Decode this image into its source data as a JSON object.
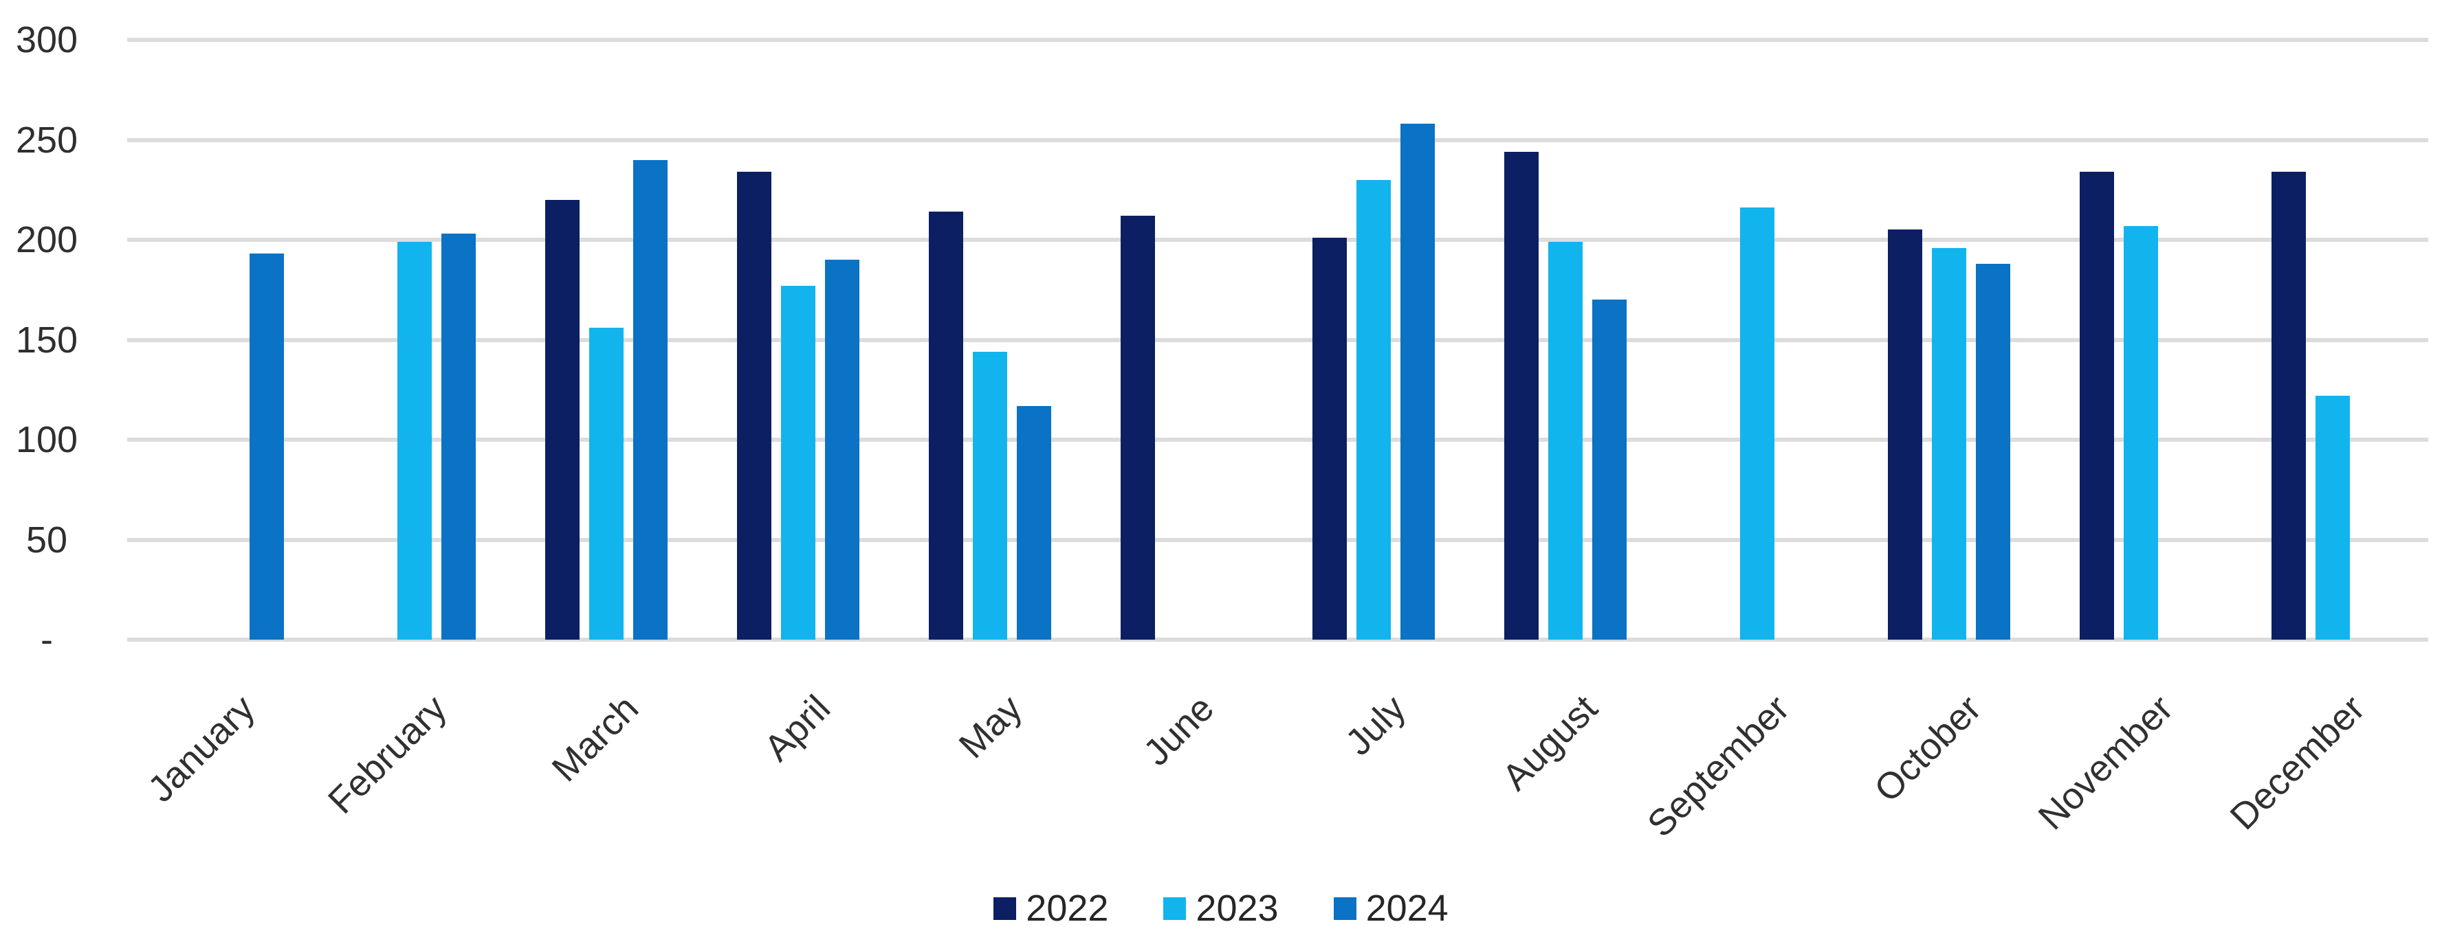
{
  "chart_data": {
    "type": "bar",
    "title": "",
    "xlabel": "",
    "ylabel": "",
    "categories": [
      "January",
      "February",
      "March",
      "April",
      "May",
      "June",
      "July",
      "August",
      "September",
      "October",
      "November",
      "December"
    ],
    "series": [
      {
        "name": "2022",
        "color": "#0c1f63",
        "values": [
          null,
          null,
          220,
          234,
          214,
          212,
          201,
          244,
          null,
          205,
          234,
          234
        ]
      },
      {
        "name": "2023",
        "color": "#12b4ee",
        "values": [
          null,
          199,
          156,
          177,
          144,
          null,
          230,
          199,
          216,
          196,
          207,
          122
        ]
      },
      {
        "name": "2024",
        "color": "#0a73c5",
        "values": [
          193,
          203,
          240,
          190,
          117,
          null,
          258,
          170,
          null,
          188,
          null,
          null
        ]
      }
    ],
    "y_axis": {
      "min": 0,
      "max": 300,
      "interval": 50,
      "ticks": [
        "300",
        "250",
        "200",
        "150",
        "100",
        "50",
        "-"
      ]
    },
    "grid": true,
    "legend_position": "bottom"
  },
  "styles": {
    "gridline_color": "#dcdcdc",
    "tick_text_color": "#2f2f2f",
    "category_text_color": "#303030",
    "legend_text_color": "#262626",
    "background_color": "#ffffff"
  }
}
